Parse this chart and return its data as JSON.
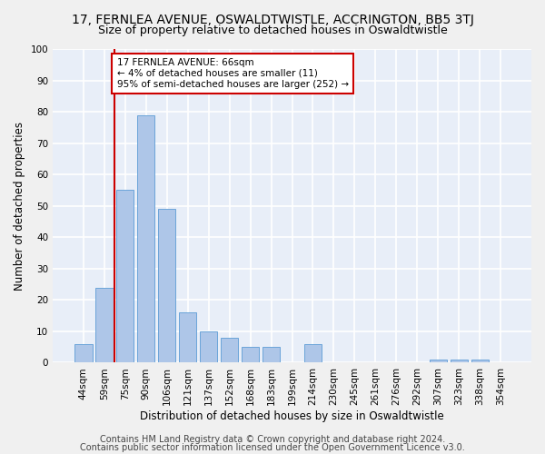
{
  "title": "17, FERNLEA AVENUE, OSWALDTWISTLE, ACCRINGTON, BB5 3TJ",
  "subtitle": "Size of property relative to detached houses in Oswaldtwistle",
  "xlabel": "Distribution of detached houses by size in Oswaldtwistle",
  "ylabel": "Number of detached properties",
  "categories": [
    "44sqm",
    "59sqm",
    "75sqm",
    "90sqm",
    "106sqm",
    "121sqm",
    "137sqm",
    "152sqm",
    "168sqm",
    "183sqm",
    "199sqm",
    "214sqm",
    "230sqm",
    "245sqm",
    "261sqm",
    "276sqm",
    "292sqm",
    "307sqm",
    "323sqm",
    "338sqm",
    "354sqm"
  ],
  "values": [
    6,
    24,
    55,
    79,
    49,
    16,
    10,
    8,
    5,
    5,
    0,
    6,
    0,
    0,
    0,
    0,
    0,
    1,
    1,
    1,
    0
  ],
  "bar_color": "#aec6e8",
  "bar_edge_color": "#5b9bd5",
  "background_color": "#e8eef8",
  "grid_color": "#ffffff",
  "annotation_text": "17 FERNLEA AVENUE: 66sqm\n← 4% of detached houses are smaller (11)\n95% of semi-detached houses are larger (252) →",
  "annotation_box_color": "#ffffff",
  "annotation_box_edge": "#cc0000",
  "red_line_color": "#cc0000",
  "ylim": [
    0,
    100
  ],
  "yticks": [
    0,
    10,
    20,
    30,
    40,
    50,
    60,
    70,
    80,
    90,
    100
  ],
  "footer1": "Contains HM Land Registry data © Crown copyright and database right 2024.",
  "footer2": "Contains public sector information licensed under the Open Government Licence v3.0.",
  "title_fontsize": 10,
  "subtitle_fontsize": 9,
  "axis_label_fontsize": 8.5,
  "tick_fontsize": 7.5,
  "annotation_fontsize": 7.5,
  "footer_fontsize": 7
}
